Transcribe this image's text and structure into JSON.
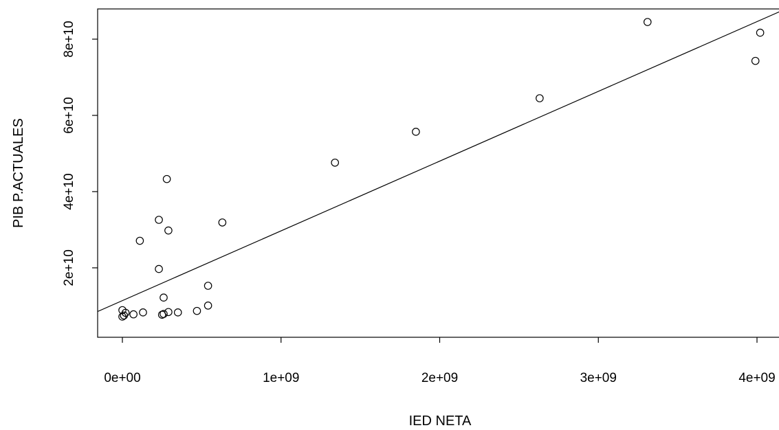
{
  "chart_data": {
    "type": "scatter",
    "title": "",
    "xlabel": "IED NETA",
    "ylabel": "PIB P.ACTUALES",
    "x_ticks": [
      "0e+00",
      "1e+09",
      "2e+09",
      "3e+09",
      "4e+09"
    ],
    "x_tick_values": [
      0,
      1000000000,
      2000000000,
      3000000000,
      4000000000
    ],
    "y_ticks": [
      "2e+10",
      "4e+10",
      "6e+10",
      "8e+10"
    ],
    "y_tick_values": [
      20000000000,
      40000000000,
      60000000000,
      80000000000
    ],
    "xlim": [
      -160000000,
      4160000000
    ],
    "ylim": [
      3500000000,
      87500000000
    ],
    "grid": false,
    "marker": "open-circle",
    "points": [
      {
        "x": 3310000000,
        "y": 84500000000
      },
      {
        "x": 4020000000,
        "y": 81700000000
      },
      {
        "x": 3990000000,
        "y": 74300000000
      },
      {
        "x": 2630000000,
        "y": 64500000000
      },
      {
        "x": 1850000000,
        "y": 55700000000
      },
      {
        "x": 1340000000,
        "y": 47600000000
      },
      {
        "x": 280000000,
        "y": 43300000000
      },
      {
        "x": 230000000,
        "y": 32600000000
      },
      {
        "x": 630000000,
        "y": 31900000000
      },
      {
        "x": 290000000,
        "y": 29800000000
      },
      {
        "x": 110000000,
        "y": 27100000000
      },
      {
        "x": 230000000,
        "y": 19700000000
      },
      {
        "x": 540000000,
        "y": 15300000000
      },
      {
        "x": 260000000,
        "y": 12200000000
      },
      {
        "x": 540000000,
        "y": 10100000000
      },
      {
        "x": 470000000,
        "y": 8700000000
      },
      {
        "x": 350000000,
        "y": 8300000000
      },
      {
        "x": 290000000,
        "y": 8400000000
      },
      {
        "x": 260000000,
        "y": 7900000000
      },
      {
        "x": 250000000,
        "y": 7700000000
      },
      {
        "x": 130000000,
        "y": 8300000000
      },
      {
        "x": 70000000,
        "y": 7800000000
      },
      {
        "x": 20000000,
        "y": 8200000000
      },
      {
        "x": 10000000,
        "y": 7500000000
      },
      {
        "x": 0,
        "y": 7200000000
      },
      {
        "x": 0,
        "y": 8900000000
      }
    ],
    "regression_line": {
      "intercept": 11400000000,
      "slope": 18.3
    }
  }
}
